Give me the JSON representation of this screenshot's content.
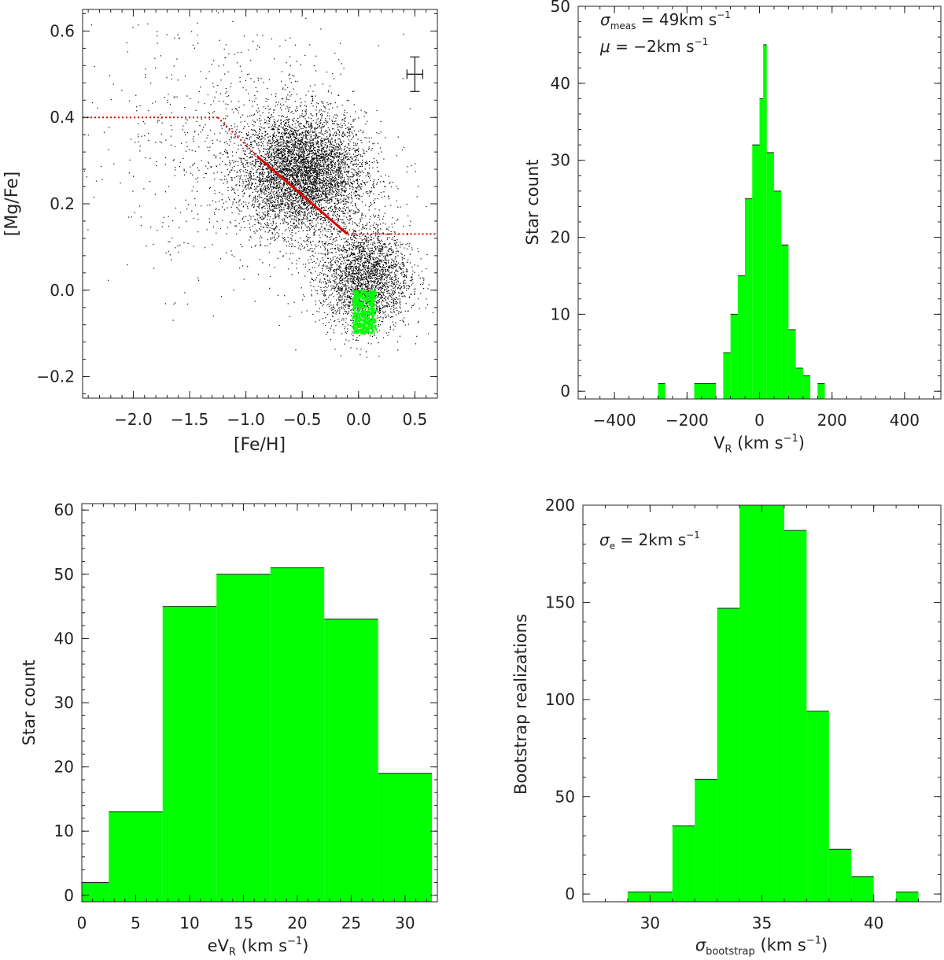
{
  "chart_data": [
    {
      "id": "scatter",
      "type": "scatter",
      "xlabel": "[Fe/H]",
      "ylabel": "[Mg/Fe]",
      "xlim": [
        -2.45,
        0.7
      ],
      "ylim": [
        -0.25,
        0.65
      ],
      "xticks": [
        -2.0,
        -1.5,
        -1.0,
        -0.5,
        0.0,
        0.5
      ],
      "xtick_labels": [
        "−2.0",
        "−1.5",
        "−1.0",
        "−0.5",
        "0.0",
        "0.5"
      ],
      "yticks": [
        -0.2,
        0.0,
        0.2,
        0.4,
        0.6
      ],
      "ytick_labels": [
        "−0.2",
        "0.0",
        "0.2",
        "0.4",
        "0.6"
      ],
      "background_color": "#000000",
      "highlight_color": "#00ff00",
      "line_color": "#dd0000",
      "background_density": [
        {
          "x": -0.5,
          "y": 0.27,
          "sx": 0.28,
          "sy": 0.07,
          "n": 5200
        },
        {
          "x": 0.05,
          "y": 0.03,
          "sx": 0.2,
          "sy": 0.06,
          "n": 2600
        },
        {
          "x": -0.9,
          "y": 0.3,
          "sx": 0.55,
          "sy": 0.14,
          "n": 600
        },
        {
          "x": -1.4,
          "y": 0.38,
          "sx": 0.6,
          "sy": 0.16,
          "n": 250
        }
      ],
      "highlight_region": {
        "x": [
          -0.05,
          0.15
        ],
        "y": [
          -0.1,
          0.0
        ],
        "n": 420
      },
      "trend_segments": [
        {
          "style": "dotted",
          "points": [
            [
              -2.45,
              0.4
            ],
            [
              -1.25,
              0.4
            ]
          ]
        },
        {
          "style": "dotted",
          "points": [
            [
              -1.25,
              0.4
            ],
            [
              -0.9,
              0.31
            ]
          ]
        },
        {
          "style": "solid",
          "points": [
            [
              -0.9,
              0.31
            ],
            [
              -0.1,
              0.13
            ]
          ]
        },
        {
          "style": "dotted",
          "points": [
            [
              -0.1,
              0.13
            ],
            [
              0.7,
              0.13
            ]
          ]
        }
      ],
      "error_bar": {
        "x": 0.5,
        "y": 0.5,
        "xerr": 0.07,
        "yerr": 0.04
      }
    },
    {
      "id": "vr_hist",
      "type": "bar",
      "xlabel_main": "V",
      "xlabel_sub": "R",
      "xlabel_tail": " (km s",
      "xlabel_sup": "−1",
      "xlabel_close": ")",
      "ylabel": "Star count",
      "xlim": [
        -500,
        500
      ],
      "ylim": [
        -1,
        50
      ],
      "xticks": [
        -400,
        -200,
        0,
        200,
        400
      ],
      "xtick_labels": [
        "−400",
        "−200",
        "0",
        "200",
        "400"
      ],
      "yticks": [
        0,
        10,
        20,
        30,
        40,
        50
      ],
      "ytick_labels": [
        "0",
        "10",
        "20",
        "30",
        "40",
        "50"
      ],
      "color": "#00ff00",
      "bins": [
        {
          "x0": -280,
          "x1": -260,
          "v": 1
        },
        {
          "x0": -180,
          "x1": -120,
          "v": 1
        },
        {
          "x0": -100,
          "x1": -80,
          "v": 5
        },
        {
          "x0": -80,
          "x1": -60,
          "v": 10
        },
        {
          "x0": -60,
          "x1": -40,
          "v": 15
        },
        {
          "x0": -40,
          "x1": -20,
          "v": 25
        },
        {
          "x0": -20,
          "x1": 0,
          "v": 32
        },
        {
          "x0": 0,
          "x1": 10,
          "v": 38
        },
        {
          "x0": 10,
          "x1": 20,
          "v": 45
        },
        {
          "x0": 20,
          "x1": 40,
          "v": 31
        },
        {
          "x0": 40,
          "x1": 60,
          "v": 26
        },
        {
          "x0": 60,
          "x1": 80,
          "v": 19
        },
        {
          "x0": 80,
          "x1": 100,
          "v": 8
        },
        {
          "x0": 100,
          "x1": 120,
          "v": 3
        },
        {
          "x0": 120,
          "x1": 140,
          "v": 2
        },
        {
          "x0": 160,
          "x1": 180,
          "v": 1
        }
      ],
      "annotation_1": {
        "main": "σ",
        "sub": "meas",
        "rest": " = 49km s",
        "sup": "−1"
      },
      "annotation_2": {
        "main": "μ",
        "rest": " = −2km s",
        "sup": "−1"
      }
    },
    {
      "id": "evr_hist",
      "type": "bar",
      "xlabel_main": "eV",
      "xlabel_sub": "R",
      "xlabel_tail": " (km s",
      "xlabel_sup": "−1",
      "xlabel_close": ")",
      "ylabel": "Star count",
      "xlim": [
        0,
        33
      ],
      "ylim": [
        -1,
        61
      ],
      "xticks": [
        0,
        5,
        10,
        15,
        20,
        25,
        30
      ],
      "xtick_labels": [
        "0",
        "5",
        "10",
        "15",
        "20",
        "25",
        "30"
      ],
      "yticks": [
        0,
        10,
        20,
        30,
        40,
        50,
        60
      ],
      "ytick_labels": [
        "0",
        "10",
        "20",
        "30",
        "40",
        "50",
        "60"
      ],
      "color": "#00ff00",
      "bins": [
        {
          "x0": 0,
          "x1": 2.5,
          "v": 2
        },
        {
          "x0": 2.5,
          "x1": 7.5,
          "v": 13
        },
        {
          "x0": 7.5,
          "x1": 12.5,
          "v": 45
        },
        {
          "x0": 12.5,
          "x1": 17.5,
          "v": 50
        },
        {
          "x0": 17.5,
          "x1": 22.5,
          "v": 51
        },
        {
          "x0": 22.5,
          "x1": 27.5,
          "v": 43
        },
        {
          "x0": 27.5,
          "x1": 32.5,
          "v": 19
        }
      ]
    },
    {
      "id": "boot_hist",
      "type": "bar",
      "xlabel_main": "σ",
      "xlabel_sub": "bootstrap",
      "xlabel_tail": " (km s",
      "xlabel_sup": "−1",
      "xlabel_close": ")",
      "ylabel": "Bootstrap realizations",
      "xlim": [
        27,
        43
      ],
      "ylim": [
        -4,
        200
      ],
      "xticks": [
        30,
        35,
        40
      ],
      "xtick_labels": [
        "30",
        "35",
        "40"
      ],
      "yticks": [
        0,
        50,
        100,
        150,
        200
      ],
      "ytick_labels": [
        "0",
        "50",
        "100",
        "150",
        "200"
      ],
      "color": "#00ff00",
      "bins": [
        {
          "x0": 29,
          "x1": 30,
          "v": 1
        },
        {
          "x0": 30,
          "x1": 31,
          "v": 1
        },
        {
          "x0": 31,
          "x1": 32,
          "v": 35
        },
        {
          "x0": 32,
          "x1": 33,
          "v": 59
        },
        {
          "x0": 33,
          "x1": 34,
          "v": 147
        },
        {
          "x0": 34,
          "x1": 35,
          "v": 200
        },
        {
          "x0": 35,
          "x1": 36,
          "v": 200
        },
        {
          "x0": 36,
          "x1": 37,
          "v": 187
        },
        {
          "x0": 37,
          "x1": 38,
          "v": 94
        },
        {
          "x0": 38,
          "x1": 39,
          "v": 23
        },
        {
          "x0": 39,
          "x1": 40,
          "v": 9
        },
        {
          "x0": 41,
          "x1": 42,
          "v": 1
        }
      ],
      "annotation_1": {
        "main": "σ",
        "sub": "e",
        "rest": " = 2km s",
        "sup": "−1"
      }
    }
  ]
}
